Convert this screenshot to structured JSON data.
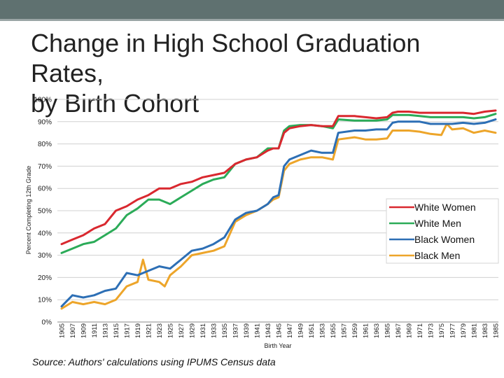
{
  "slide": {
    "title_line1": "Change in High School Graduation Rates,",
    "title_line2": "by Birth Cohort",
    "source": "Source: Authors' calculations using IPUMS Census data"
  },
  "colors": {
    "topbar": "#5f7170",
    "white_women": "#d9282f",
    "white_men": "#2bab58",
    "black_women": "#2d6fb5",
    "black_men": "#eda52a",
    "grid": "#d0d0d0"
  },
  "chart_data": {
    "type": "line",
    "title": "",
    "xlabel": "Birth Year",
    "ylabel": "Percent Completing 12th Grade",
    "ylim": [
      0,
      100
    ],
    "yticks": [
      "0%",
      "10%",
      "20%",
      "30%",
      "40%",
      "50%",
      "60%",
      "70%",
      "80%",
      "90%",
      "100%"
    ],
    "xlim": [
      1905,
      1985
    ],
    "xticks": [
      "1905",
      "1907",
      "1909",
      "1911",
      "1913",
      "1915",
      "1917",
      "1919",
      "1921",
      "1923",
      "1925",
      "1927",
      "1929",
      "1931",
      "1933",
      "1935",
      "1937",
      "1939",
      "1941",
      "1943",
      "1945",
      "1947",
      "1949",
      "1951",
      "1953",
      "1955",
      "1957",
      "1959",
      "1961",
      "1963",
      "1965",
      "1967",
      "1969",
      "1971",
      "1973",
      "1975",
      "1977",
      "1979",
      "1981",
      "1983",
      "1985"
    ],
    "grid": true,
    "legend_position": "right",
    "series": [
      {
        "name": "White Women",
        "color": "#d9282f",
        "points": [
          [
            1905,
            35
          ],
          [
            1907,
            37
          ],
          [
            1909,
            39
          ],
          [
            1911,
            42
          ],
          [
            1913,
            44
          ],
          [
            1915,
            50
          ],
          [
            1917,
            52
          ],
          [
            1919,
            55
          ],
          [
            1921,
            57
          ],
          [
            1923,
            60
          ],
          [
            1925,
            60
          ],
          [
            1927,
            62
          ],
          [
            1929,
            63
          ],
          [
            1931,
            65
          ],
          [
            1933,
            66
          ],
          [
            1935,
            67
          ],
          [
            1937,
            71
          ],
          [
            1939,
            73
          ],
          [
            1941,
            74
          ],
          [
            1943,
            77
          ],
          [
            1944,
            78
          ],
          [
            1945,
            78
          ],
          [
            1946,
            85
          ],
          [
            1947,
            87
          ],
          [
            1949,
            88
          ],
          [
            1951,
            88.5
          ],
          [
            1953,
            88
          ],
          [
            1955,
            88
          ],
          [
            1956,
            92.5
          ],
          [
            1959,
            92.5
          ],
          [
            1961,
            92
          ],
          [
            1963,
            91.5
          ],
          [
            1965,
            92
          ],
          [
            1966,
            94
          ],
          [
            1967,
            94.5
          ],
          [
            1969,
            94.5
          ],
          [
            1971,
            94
          ],
          [
            1973,
            94
          ],
          [
            1975,
            94
          ],
          [
            1977,
            94
          ],
          [
            1979,
            94
          ],
          [
            1981,
            93.5
          ],
          [
            1983,
            94.5
          ],
          [
            1985,
            95
          ]
        ]
      },
      {
        "name": "White Men",
        "color": "#2bab58",
        "points": [
          [
            1905,
            31
          ],
          [
            1907,
            33
          ],
          [
            1909,
            35
          ],
          [
            1911,
            36
          ],
          [
            1913,
            39
          ],
          [
            1915,
            42
          ],
          [
            1917,
            48
          ],
          [
            1919,
            51
          ],
          [
            1921,
            55
          ],
          [
            1923,
            55
          ],
          [
            1925,
            53
          ],
          [
            1927,
            56
          ],
          [
            1929,
            59
          ],
          [
            1931,
            62
          ],
          [
            1933,
            64
          ],
          [
            1935,
            65
          ],
          [
            1937,
            71
          ],
          [
            1939,
            73
          ],
          [
            1941,
            74
          ],
          [
            1943,
            78
          ],
          [
            1944,
            78
          ],
          [
            1945,
            78
          ],
          [
            1946,
            86
          ],
          [
            1947,
            88
          ],
          [
            1949,
            88.5
          ],
          [
            1951,
            88.5
          ],
          [
            1953,
            88
          ],
          [
            1955,
            87
          ],
          [
            1956,
            91
          ],
          [
            1959,
            90.5
          ],
          [
            1961,
            90.5
          ],
          [
            1963,
            90.5
          ],
          [
            1965,
            91
          ],
          [
            1966,
            93
          ],
          [
            1967,
            93
          ],
          [
            1969,
            93
          ],
          [
            1971,
            92.5
          ],
          [
            1973,
            92
          ],
          [
            1975,
            92
          ],
          [
            1977,
            92
          ],
          [
            1979,
            92
          ],
          [
            1981,
            91.5
          ],
          [
            1983,
            92
          ],
          [
            1985,
            93.5
          ]
        ]
      },
      {
        "name": "Black Women",
        "color": "#2d6fb5",
        "points": [
          [
            1905,
            7
          ],
          [
            1907,
            12
          ],
          [
            1909,
            11
          ],
          [
            1911,
            12
          ],
          [
            1913,
            14
          ],
          [
            1915,
            15
          ],
          [
            1917,
            22
          ],
          [
            1919,
            21
          ],
          [
            1921,
            23
          ],
          [
            1923,
            25
          ],
          [
            1925,
            24
          ],
          [
            1927,
            28
          ],
          [
            1929,
            32
          ],
          [
            1931,
            33
          ],
          [
            1933,
            35
          ],
          [
            1935,
            38
          ],
          [
            1937,
            46
          ],
          [
            1939,
            49
          ],
          [
            1941,
            50
          ],
          [
            1943,
            53
          ],
          [
            1944,
            56
          ],
          [
            1945,
            57
          ],
          [
            1946,
            70
          ],
          [
            1947,
            73
          ],
          [
            1949,
            75
          ],
          [
            1951,
            77
          ],
          [
            1953,
            76
          ],
          [
            1955,
            76
          ],
          [
            1956,
            85
          ],
          [
            1959,
            86
          ],
          [
            1961,
            86
          ],
          [
            1963,
            86.5
          ],
          [
            1965,
            86.5
          ],
          [
            1966,
            89.5
          ],
          [
            1967,
            90
          ],
          [
            1969,
            90
          ],
          [
            1971,
            90
          ],
          [
            1973,
            89
          ],
          [
            1975,
            89
          ],
          [
            1977,
            89
          ],
          [
            1979,
            89.5
          ],
          [
            1981,
            89
          ],
          [
            1983,
            89.5
          ],
          [
            1985,
            91
          ]
        ]
      },
      {
        "name": "Black Men",
        "color": "#eda52a",
        "points": [
          [
            1905,
            6
          ],
          [
            1907,
            9
          ],
          [
            1909,
            8
          ],
          [
            1911,
            9
          ],
          [
            1913,
            8
          ],
          [
            1915,
            10
          ],
          [
            1917,
            16
          ],
          [
            1919,
            18
          ],
          [
            1920,
            28
          ],
          [
            1921,
            19
          ],
          [
            1923,
            18
          ],
          [
            1924,
            16
          ],
          [
            1925,
            21
          ],
          [
            1927,
            25
          ],
          [
            1929,
            30
          ],
          [
            1931,
            31
          ],
          [
            1933,
            32
          ],
          [
            1935,
            34
          ],
          [
            1937,
            45
          ],
          [
            1939,
            48
          ],
          [
            1941,
            50
          ],
          [
            1943,
            53
          ],
          [
            1944,
            55
          ],
          [
            1945,
            56
          ],
          [
            1946,
            68
          ],
          [
            1947,
            71
          ],
          [
            1949,
            73
          ],
          [
            1951,
            74
          ],
          [
            1953,
            74
          ],
          [
            1955,
            73
          ],
          [
            1956,
            82
          ],
          [
            1959,
            83
          ],
          [
            1961,
            82
          ],
          [
            1963,
            82
          ],
          [
            1965,
            82.5
          ],
          [
            1966,
            86
          ],
          [
            1967,
            86
          ],
          [
            1969,
            86
          ],
          [
            1971,
            85.5
          ],
          [
            1973,
            84.5
          ],
          [
            1975,
            84
          ],
          [
            1976,
            89
          ],
          [
            1977,
            86.5
          ],
          [
            1979,
            87
          ],
          [
            1981,
            85
          ],
          [
            1983,
            86
          ],
          [
            1985,
            85
          ]
        ]
      }
    ]
  }
}
